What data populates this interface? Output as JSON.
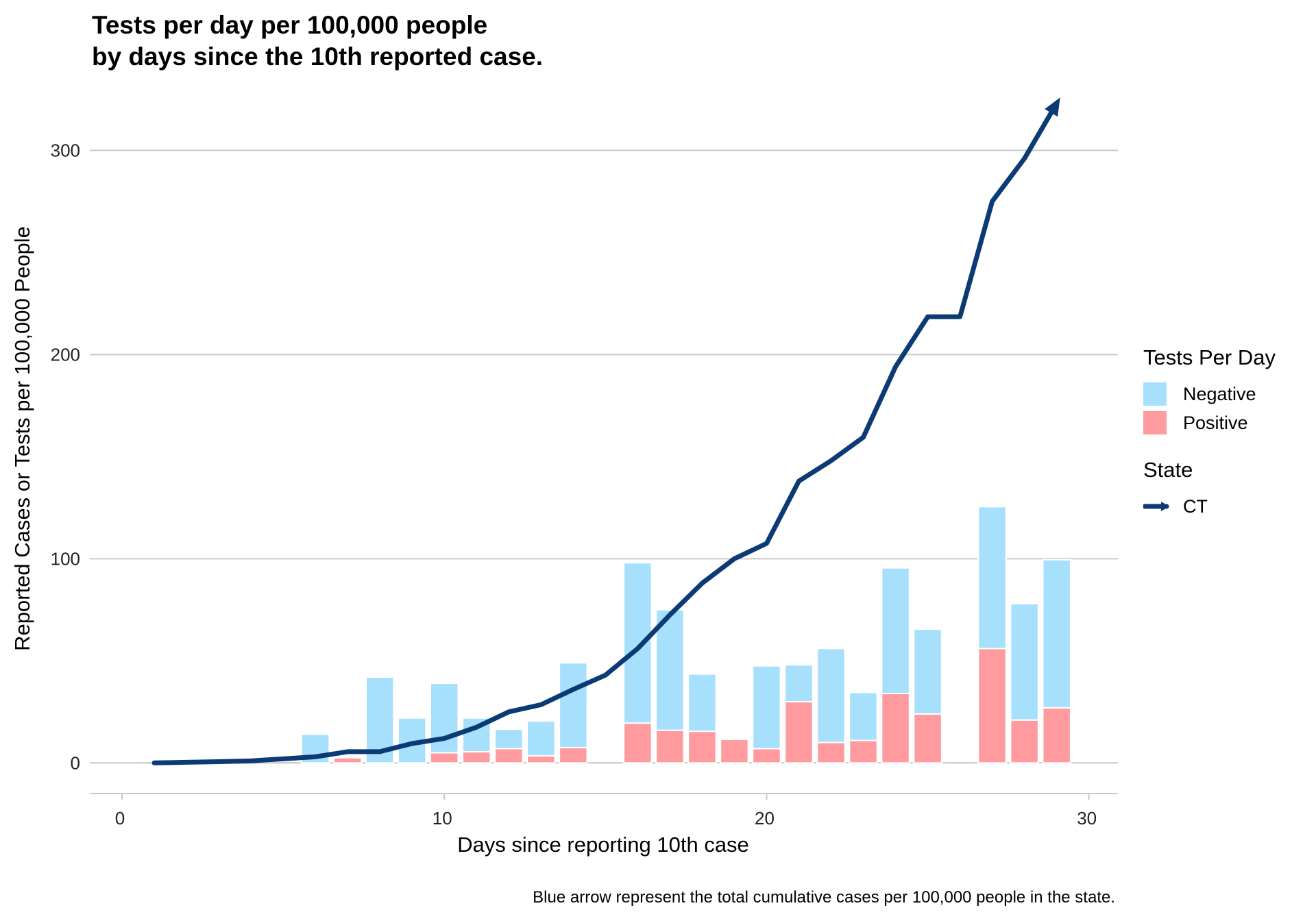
{
  "title": {
    "line1": "Tests per day per 100,000 people",
    "line2": "by days since the 10th reported case."
  },
  "caption": "Blue arrow represent the total cumulative cases per 100,000 people in the state.",
  "legend": {
    "fill_title": "Tests Per Day",
    "fill_items": [
      {
        "label": "Negative",
        "color": "#A6E0FC"
      },
      {
        "label": "Positive",
        "color": "#FF9B9E"
      }
    ],
    "line_title": "State",
    "line_items": [
      {
        "label": "CT",
        "color": "#0B3A75"
      }
    ]
  },
  "chart_data": {
    "type": "bar",
    "title": "Tests per day per 100,000 people by days since the 10th reported case.",
    "xlabel": "Days since reporting 10th case",
    "ylabel": "Reported Cases or Tests per 100,000 People",
    "xlim": [
      -1,
      30.9
    ],
    "ylim": [
      -15,
      330
    ],
    "xticks": [
      0,
      10,
      20,
      30
    ],
    "yticks": [
      0,
      100,
      200,
      300
    ],
    "xtick_labels": [
      "0",
      "10",
      "20",
      "30"
    ],
    "ytick_labels": [
      "0",
      "100",
      "200",
      "300"
    ],
    "grid": "horizontal",
    "legend_position": "right",
    "stacked": true,
    "bars": {
      "days": [
        1,
        2,
        3,
        4,
        5,
        6,
        7,
        8,
        9,
        10,
        11,
        12,
        13,
        14,
        15,
        16,
        17,
        18,
        19,
        20,
        21,
        22,
        23,
        24,
        25,
        26,
        27,
        28,
        29
      ],
      "series": [
        {
          "name": "Positive",
          "color": "#FF9B9E",
          "values": [
            0,
            0,
            0,
            0,
            0,
            0,
            2.5,
            0,
            0,
            5,
            5.5,
            7,
            3.5,
            7.5,
            0,
            19.5,
            16,
            15.5,
            11.5,
            7,
            30,
            10,
            11,
            34,
            24,
            0,
            56,
            21,
            27
          ]
        },
        {
          "name": "Negative",
          "color": "#A6E0FC",
          "values": [
            0,
            0,
            0,
            0,
            0,
            14,
            0,
            42,
            22,
            34,
            16.5,
            9.5,
            17,
            41.5,
            0,
            78.5,
            59,
            28,
            0,
            40.5,
            18,
            46,
            23.5,
            61.5,
            41.5,
            0,
            69.5,
            57,
            72.5
          ]
        }
      ]
    },
    "line": {
      "name": "CT",
      "color": "#0B3A75",
      "arrow_end": true,
      "x": [
        1,
        2,
        3,
        4,
        5,
        6,
        7,
        8,
        9,
        10,
        11,
        12,
        13,
        14,
        15,
        16,
        17,
        18,
        19,
        20,
        21,
        22,
        23,
        24,
        25,
        26,
        27,
        28,
        29
      ],
      "y": [
        0,
        0.3,
        0.6,
        1,
        2,
        3,
        5.5,
        5.5,
        9.5,
        12,
        17.5,
        25,
        28.5,
        36,
        43,
        56,
        72.5,
        88,
        100,
        107.5,
        138,
        148,
        159.5,
        194,
        218.5,
        218.5,
        275,
        296,
        323
      ]
    }
  }
}
